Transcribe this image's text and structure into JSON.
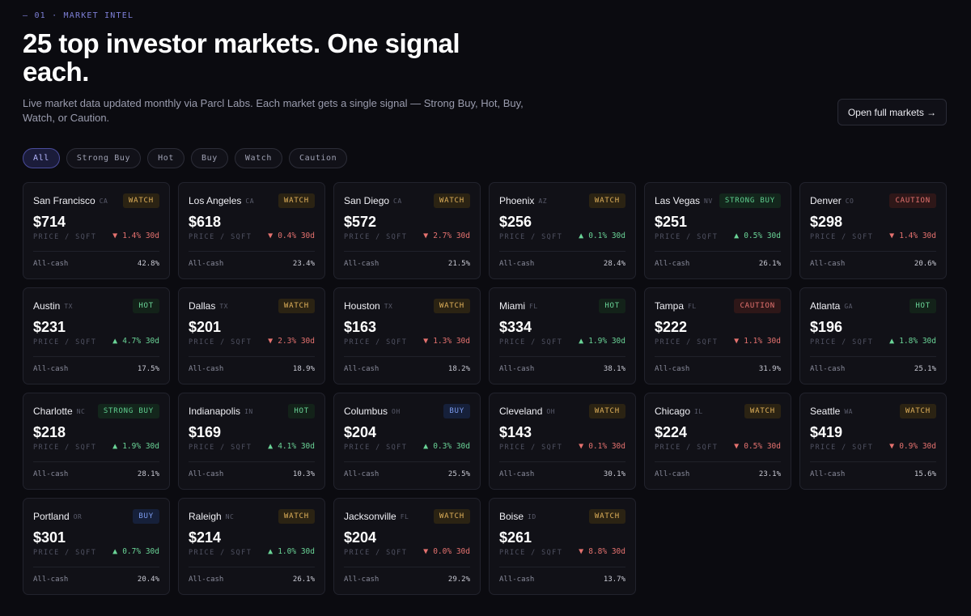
{
  "eyebrow": "— 01 · MARKET INTEL",
  "title": "25 top investor markets. One signal each.",
  "subtitle": "Live market data updated monthly via Parcl Labs. Each market gets a single signal — Strong Buy, Hot, Buy, Watch, or Caution.",
  "open_button": "Open full markets →",
  "filters": [
    "All",
    "Strong Buy",
    "Hot",
    "Buy",
    "Watch",
    "Caution"
  ],
  "active_filter": "All",
  "labels": {
    "unit": "PRICE / SQFT",
    "cash": "All-cash",
    "period": "30d"
  },
  "colors": {
    "accent": "#7d7fd6",
    "up": "#6ad497",
    "down": "#e5726f",
    "watch": "#e0b15a",
    "buy": "#7d9cf0"
  },
  "markets": [
    {
      "city": "San Francisco",
      "state": "CA",
      "signal": "WATCH",
      "price": "$714",
      "dir": "down",
      "change": "1.4%",
      "cash": "42.8%"
    },
    {
      "city": "Los Angeles",
      "state": "CA",
      "signal": "WATCH",
      "price": "$618",
      "dir": "down",
      "change": "0.4%",
      "cash": "23.4%"
    },
    {
      "city": "San Diego",
      "state": "CA",
      "signal": "WATCH",
      "price": "$572",
      "dir": "down",
      "change": "2.7%",
      "cash": "21.5%"
    },
    {
      "city": "Phoenix",
      "state": "AZ",
      "signal": "WATCH",
      "price": "$256",
      "dir": "up",
      "change": "0.1%",
      "cash": "28.4%"
    },
    {
      "city": "Las Vegas",
      "state": "NV",
      "signal": "STRONG BUY",
      "price": "$251",
      "dir": "up",
      "change": "0.5%",
      "cash": "26.1%"
    },
    {
      "city": "Denver",
      "state": "CO",
      "signal": "CAUTION",
      "price": "$298",
      "dir": "down",
      "change": "1.4%",
      "cash": "20.6%"
    },
    {
      "city": "Austin",
      "state": "TX",
      "signal": "HOT",
      "price": "$231",
      "dir": "up",
      "change": "4.7%",
      "cash": "17.5%"
    },
    {
      "city": "Dallas",
      "state": "TX",
      "signal": "WATCH",
      "price": "$201",
      "dir": "down",
      "change": "2.3%",
      "cash": "18.9%"
    },
    {
      "city": "Houston",
      "state": "TX",
      "signal": "WATCH",
      "price": "$163",
      "dir": "down",
      "change": "1.3%",
      "cash": "18.2%"
    },
    {
      "city": "Miami",
      "state": "FL",
      "signal": "HOT",
      "price": "$334",
      "dir": "up",
      "change": "1.9%",
      "cash": "38.1%"
    },
    {
      "city": "Tampa",
      "state": "FL",
      "signal": "CAUTION",
      "price": "$222",
      "dir": "down",
      "change": "1.1%",
      "cash": "31.9%"
    },
    {
      "city": "Atlanta",
      "state": "GA",
      "signal": "HOT",
      "price": "$196",
      "dir": "up",
      "change": "1.8%",
      "cash": "25.1%"
    },
    {
      "city": "Charlotte",
      "state": "NC",
      "signal": "STRONG BUY",
      "price": "$218",
      "dir": "up",
      "change": "1.9%",
      "cash": "28.1%"
    },
    {
      "city": "Indianapolis",
      "state": "IN",
      "signal": "HOT",
      "price": "$169",
      "dir": "up",
      "change": "4.1%",
      "cash": "10.3%"
    },
    {
      "city": "Columbus",
      "state": "OH",
      "signal": "BUY",
      "price": "$204",
      "dir": "up",
      "change": "0.3%",
      "cash": "25.5%"
    },
    {
      "city": "Cleveland",
      "state": "OH",
      "signal": "WATCH",
      "price": "$143",
      "dir": "down",
      "change": "0.1%",
      "cash": "30.1%"
    },
    {
      "city": "Chicago",
      "state": "IL",
      "signal": "WATCH",
      "price": "$224",
      "dir": "down",
      "change": "0.5%",
      "cash": "23.1%"
    },
    {
      "city": "Seattle",
      "state": "WA",
      "signal": "WATCH",
      "price": "$419",
      "dir": "down",
      "change": "0.9%",
      "cash": "15.6%"
    },
    {
      "city": "Portland",
      "state": "OR",
      "signal": "BUY",
      "price": "$301",
      "dir": "up",
      "change": "0.7%",
      "cash": "20.4%"
    },
    {
      "city": "Raleigh",
      "state": "NC",
      "signal": "WATCH",
      "price": "$214",
      "dir": "up",
      "change": "1.0%",
      "cash": "26.1%"
    },
    {
      "city": "Jacksonville",
      "state": "FL",
      "signal": "WATCH",
      "price": "$204",
      "dir": "down",
      "change": "0.0%",
      "cash": "29.2%"
    },
    {
      "city": "Boise",
      "state": "ID",
      "signal": "WATCH",
      "price": "$261",
      "dir": "down",
      "change": "8.8%",
      "cash": "13.7%"
    }
  ]
}
